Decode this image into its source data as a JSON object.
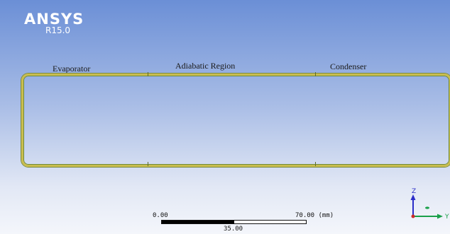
{
  "logo": {
    "name": "ANSYS",
    "version": "R15.0"
  },
  "regions": {
    "evaporator": "Evaporator",
    "adiabatic": "Adiabatic Region",
    "condenser": "Condenser"
  },
  "scale": {
    "min": "0.00",
    "mid": "35.00",
    "max": "70.00 (mm)"
  },
  "triad": {
    "z": "Z",
    "y": "Y",
    "z_color": "#2c2ec8",
    "y_color": "#1aa04a",
    "x_color": "#cc2b2b"
  },
  "colors": {
    "pipe_wall": "#c9bd4e",
    "background_top": "#6b8fd6",
    "background_bottom": "#f4f6fb"
  }
}
